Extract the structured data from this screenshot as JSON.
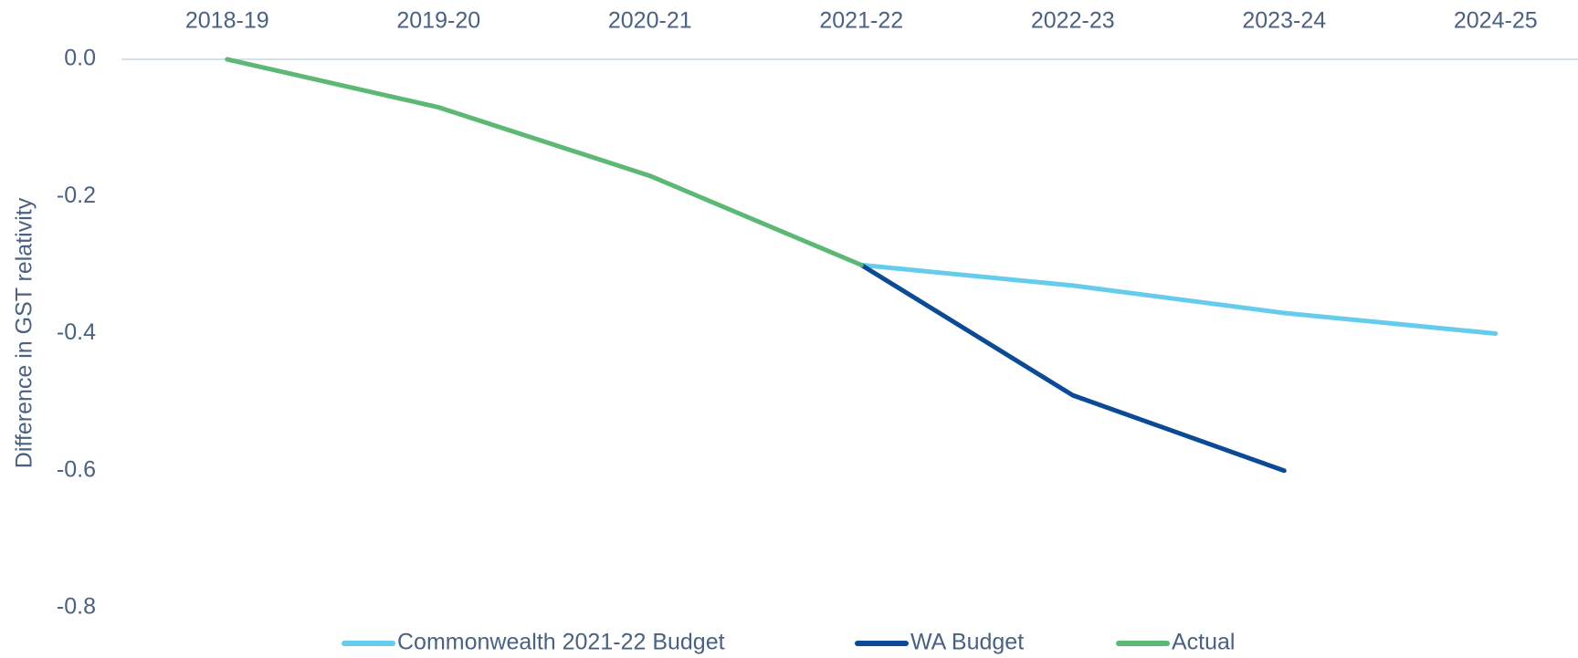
{
  "chart_data": {
    "type": "line",
    "y_label": "Difference in GST relativity",
    "categories": [
      "2018-19",
      "2019-20",
      "2020-21",
      "2021-22",
      "2022-23",
      "2023-24",
      "2024-25"
    ],
    "series": [
      {
        "name": "Commonwealth 2021-22 Budget",
        "color": "#66ccee",
        "values": [
          null,
          null,
          null,
          -0.3,
          -0.33,
          -0.37,
          -0.4
        ]
      },
      {
        "name": "WA Budget",
        "color": "#0b4a94",
        "values": [
          null,
          null,
          null,
          -0.3,
          -0.49,
          -0.6,
          null
        ]
      },
      {
        "name": "Actual",
        "color": "#5cb874",
        "values": [
          0,
          -0.07,
          -0.17,
          -0.3,
          null,
          null,
          null
        ]
      }
    ],
    "ylim": [
      -0.8,
      0
    ],
    "yticks": [
      {
        "value": 0,
        "label": "0.0"
      },
      -0.2,
      -0.4,
      -0.6,
      -0.8
    ],
    "legend": "bottom"
  }
}
